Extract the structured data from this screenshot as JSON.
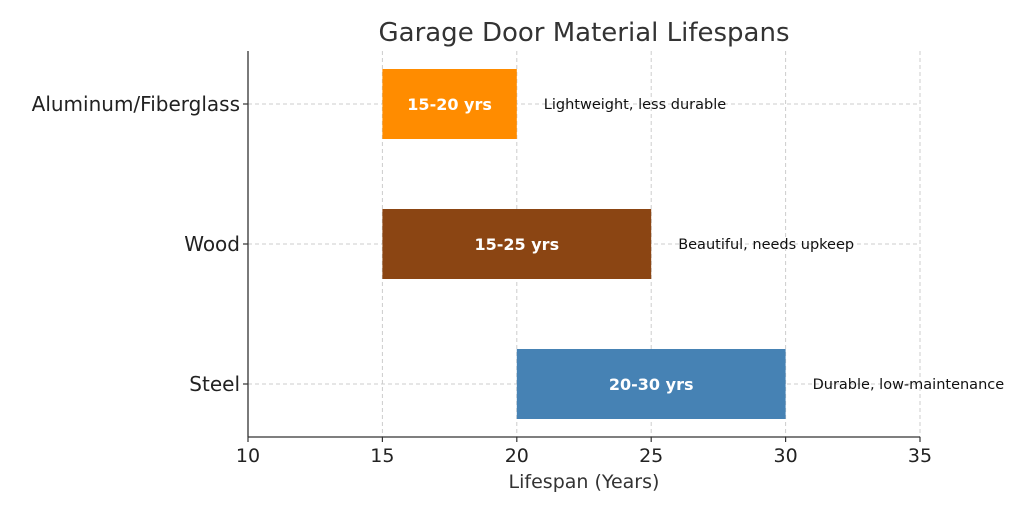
{
  "chart_data": {
    "type": "bar",
    "orientation": "horizontal-range",
    "title": "Garage Door Material Lifespans",
    "xlabel": "Lifespan (Years)",
    "ylabel": "",
    "xlim": [
      10,
      35
    ],
    "xticks": [
      10,
      15,
      20,
      25,
      30,
      35
    ],
    "grid": true,
    "categories": [
      "Aluminum/Fiberglass",
      "Wood",
      "Steel"
    ],
    "ranges": [
      {
        "category": "Aluminum/Fiberglass",
        "start": 15,
        "end": 20,
        "label": "15-20 yrs",
        "note": "Lightweight, less durable",
        "color": "#ff8c00"
      },
      {
        "category": "Wood",
        "start": 15,
        "end": 25,
        "label": "15-25 yrs",
        "note": "Beautiful, needs upkeep",
        "color": "#8b4513"
      },
      {
        "category": "Steel",
        "start": 20,
        "end": 30,
        "label": "20-30 yrs",
        "note": "Durable, low-maintenance",
        "color": "#4682b4"
      }
    ]
  }
}
